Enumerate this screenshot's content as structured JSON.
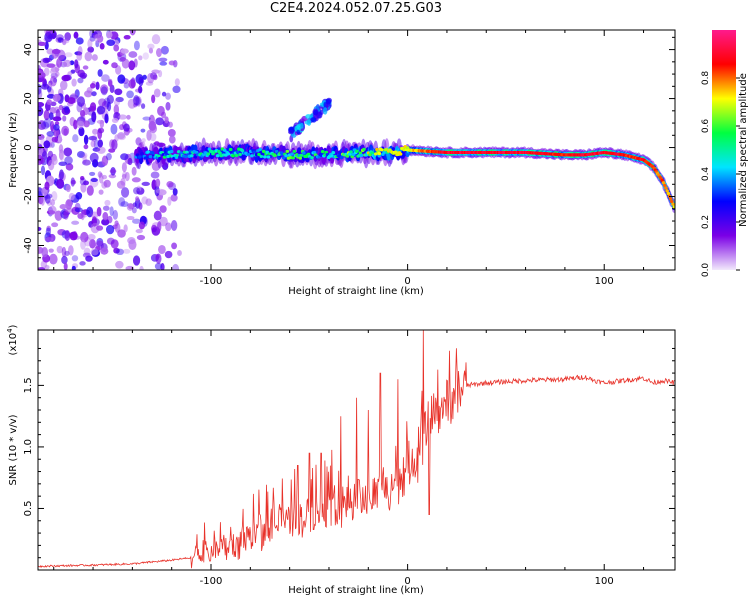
{
  "title": "C2E4.2024.052.07.25.G03",
  "chart_data": [
    {
      "type": "heatmap",
      "xlabel": "Height of straight line (km)",
      "ylabel": "Frequency (Hz)",
      "xlim": [
        -188,
        136
      ],
      "ylim": [
        -50,
        48
      ],
      "xticks": [
        -100,
        0,
        100
      ],
      "yticks": [
        40,
        20,
        0,
        -20,
        -40
      ],
      "colorbar": {
        "label": "Normalized spectral amplitude",
        "range": [
          0,
          1
        ],
        "ticks": [
          "0.0",
          "0.2",
          "0.4",
          "0.6",
          "0.8"
        ],
        "colors": [
          "#f2e9fb",
          "#7b00e6",
          "#0000ff",
          "#00e5ff",
          "#00ff40",
          "#ffff00",
          "#ff0000",
          "#ff1a8c"
        ]
      },
      "noise_region": {
        "x": [
          -188,
          -116
        ],
        "amplitude": 0.15
      },
      "trace": {
        "x": [
          -138,
          -120,
          -100,
          -80,
          -60,
          -40,
          -20,
          -10,
          0,
          20,
          40,
          60,
          80,
          90,
          100,
          110,
          120,
          125,
          130,
          136
        ],
        "f": [
          -3,
          -3,
          -2,
          -2,
          -3,
          -3,
          -2,
          -2,
          -1,
          -2,
          -2,
          -2,
          -3,
          -3,
          -2,
          -3,
          -5,
          -8,
          -14,
          -25
        ],
        "amp": [
          0.35,
          0.45,
          0.45,
          0.45,
          0.5,
          0.45,
          0.6,
          0.7,
          0.7,
          0.9,
          0.9,
          0.9,
          0.85,
          0.9,
          0.9,
          0.85,
          0.85,
          0.8,
          0.8,
          0.75
        ]
      },
      "branch": {
        "x": [
          -60,
          -40
        ],
        "f": [
          5,
          18
        ],
        "amp": 0.3
      }
    },
    {
      "type": "line",
      "xlabel": "Height of straight line (km)",
      "ylabel": "SNR (10 * v/v)",
      "yscale_note": "(x10",
      "yscale_exp": "4",
      "yscale_close": ")",
      "xlim": [
        -188,
        136
      ],
      "ylim": [
        0,
        1.95
      ],
      "xticks": [
        -100,
        0,
        100
      ],
      "yticks": [
        0.5,
        1.0,
        1.5
      ],
      "color": "#e8322a",
      "series": [
        {
          "x": [
            -188,
            -160,
            -140,
            -120,
            -110,
            -100,
            -90,
            -80,
            -70,
            -60,
            -50,
            -40,
            -30,
            -20,
            -10,
            -5,
            0,
            5,
            8,
            10,
            15,
            20,
            25,
            30,
            40,
            60,
            80,
            90,
            95,
            100,
            110,
            120,
            125,
            130,
            136
          ],
          "values": [
            0.03,
            0.04,
            0.05,
            0.08,
            0.1,
            0.15,
            0.2,
            0.25,
            0.35,
            0.4,
            0.45,
            0.5,
            0.55,
            0.6,
            0.65,
            0.7,
            0.85,
            0.95,
            1.1,
            1.15,
            1.3,
            1.35,
            1.45,
            1.5,
            1.52,
            1.54,
            1.55,
            1.57,
            1.54,
            1.52,
            1.54,
            1.56,
            1.52,
            1.54,
            1.52
          ]
        }
      ],
      "spikes": [
        {
          "x": -90,
          "y": 0.35
        },
        {
          "x": -68,
          "y": 0.55
        },
        {
          "x": -56,
          "y": 0.85
        },
        {
          "x": -50,
          "y": 0.95
        },
        {
          "x": -44,
          "y": 0.95
        },
        {
          "x": -34,
          "y": 1.25
        },
        {
          "x": -26,
          "y": 1.4
        },
        {
          "x": -20,
          "y": 1.3
        },
        {
          "x": -14,
          "y": 1.6
        },
        {
          "x": -5,
          "y": 1.55
        },
        {
          "x": 8,
          "y": 1.95
        },
        {
          "x": 11,
          "y": 0.45
        }
      ]
    }
  ]
}
